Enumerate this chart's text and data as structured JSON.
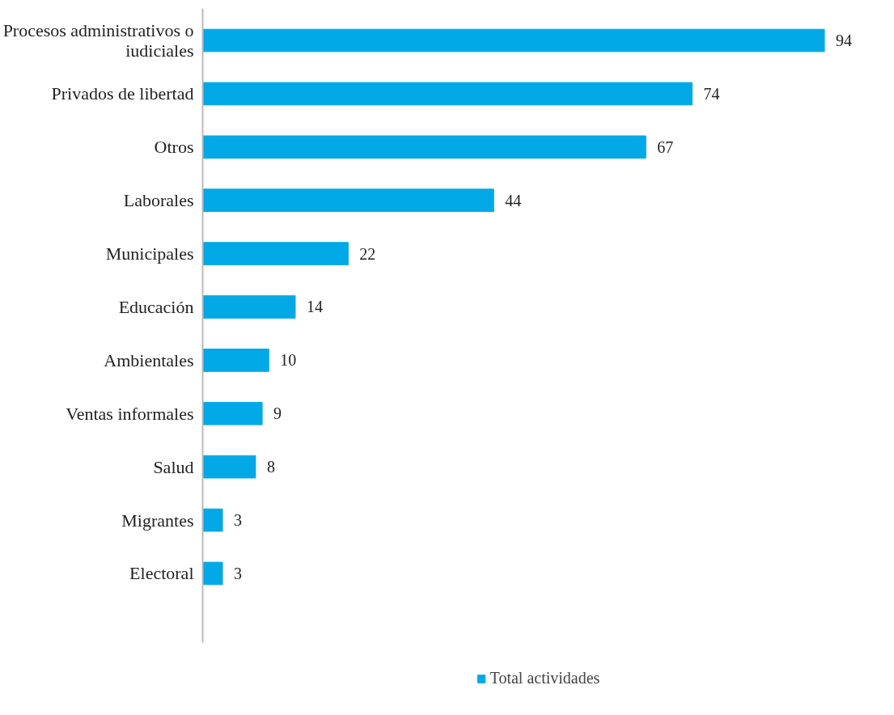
{
  "chart_data": {
    "type": "bar",
    "orientation": "horizontal",
    "categories": [
      "Procesos administrativos o\niudiciales",
      "Privados de libertad",
      "Otros",
      "Laborales",
      "Municipales",
      "Educación",
      "Ambientales",
      "Ventas informales",
      "Salud",
      "Migrantes",
      "Electoral"
    ],
    "series": [
      {
        "name": "Total actividades",
        "color": "#00a9e6",
        "values": [
          94,
          74,
          67,
          44,
          22,
          14,
          10,
          9,
          8,
          3,
          3
        ]
      }
    ],
    "data_labels": true,
    "legend": "bottom",
    "grid": false
  }
}
